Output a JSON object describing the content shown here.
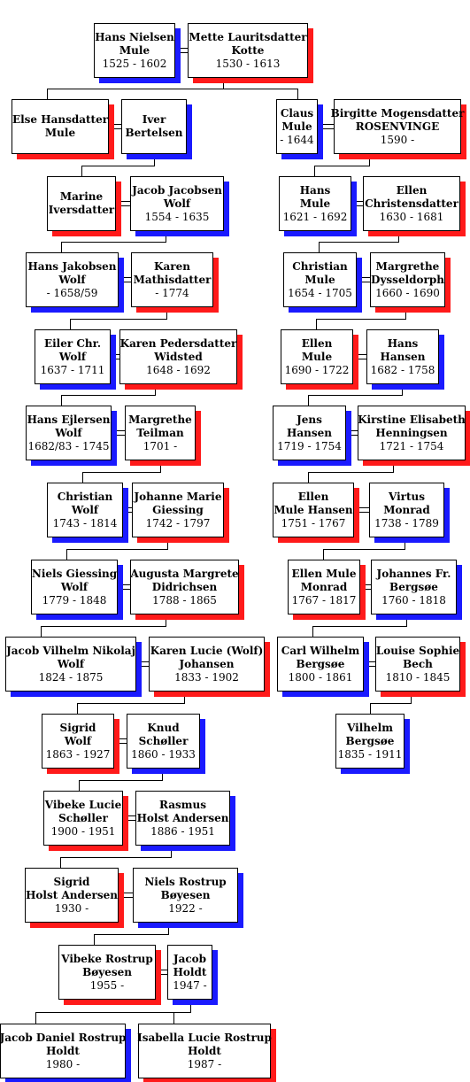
{
  "persons": [
    {
      "id": "p1",
      "line1": "Hans Nielsen",
      "line2": "Mule",
      "dates": "1525 - 1602",
      "sex": "m"
    },
    {
      "id": "p2",
      "line1": "Mette Lauritsdatter",
      "line2": "Kotte",
      "dates": "1530 - 1613",
      "sex": "f"
    },
    {
      "id": "p3",
      "line1": "Else Hansdatter",
      "line2": "Mule",
      "dates": "",
      "sex": "f"
    },
    {
      "id": "p4",
      "line1": "Iver",
      "line2": "Bertelsen",
      "dates": "",
      "sex": "m"
    },
    {
      "id": "p5",
      "line1": "Claus",
      "line2": "Mule",
      "dates": "- 1644",
      "sex": "m"
    },
    {
      "id": "p6",
      "line1": "Birgitte Mogensdatter",
      "line2": "ROSENVINGE",
      "dates": "1590 -",
      "sex": "f"
    },
    {
      "id": "p7",
      "line1": "Marine",
      "line2": "Iversdatter",
      "dates": "",
      "sex": "f"
    },
    {
      "id": "p8",
      "line1": "Jacob Jacobsen",
      "line2": "Wolf",
      "dates": "1554 - 1635",
      "sex": "m"
    },
    {
      "id": "p9",
      "line1": "Hans",
      "line2": "Mule",
      "dates": "1621 - 1692",
      "sex": "m"
    },
    {
      "id": "p10",
      "line1": "Ellen",
      "line2": "Christensdatter",
      "dates": "1630 - 1681",
      "sex": "f"
    },
    {
      "id": "p11",
      "line1": "Hans Jakobsen",
      "line2": "Wolf",
      "dates": "- 1658/59",
      "sex": "m"
    },
    {
      "id": "p12",
      "line1": "Karen",
      "line2": "Mathisdatter",
      "dates": "- 1774",
      "sex": "f"
    },
    {
      "id": "p13",
      "line1": "Christian",
      "line2": "Mule",
      "dates": "1654 - 1705",
      "sex": "m"
    },
    {
      "id": "p14",
      "line1": "Margrethe",
      "line2": "Dysseldorph",
      "dates": "1660 - 1690",
      "sex": "f"
    },
    {
      "id": "p15",
      "line1": "Eiler Chr.",
      "line2": "Wolf",
      "dates": "1637 - 1711",
      "sex": "m"
    },
    {
      "id": "p16",
      "line1": "Karen Pedersdatter",
      "line2": "Widsted",
      "dates": "1648 - 1692",
      "sex": "f"
    },
    {
      "id": "p17",
      "line1": "Ellen",
      "line2": "Mule",
      "dates": "1690 - 1722",
      "sex": "f"
    },
    {
      "id": "p18",
      "line1": "Hans",
      "line2": "Hansen",
      "dates": "1682 - 1758",
      "sex": "m"
    },
    {
      "id": "p19",
      "line1": "Hans Ejlersen",
      "line2": "Wolf",
      "dates": "1682/83 - 1745",
      "sex": "m"
    },
    {
      "id": "p20",
      "line1": "Margrethe",
      "line2": "Teilman",
      "dates": "1701 -",
      "sex": "f"
    },
    {
      "id": "p21",
      "line1": "Jens",
      "line2": "Hansen",
      "dates": "1719 - 1754",
      "sex": "m"
    },
    {
      "id": "p22",
      "line1": "Kirstine Elisabeth",
      "line2": "Henningsen",
      "dates": "1721 - 1754",
      "sex": "f"
    },
    {
      "id": "p23",
      "line1": "Christian",
      "line2": "Wolf",
      "dates": "1743 - 1814",
      "sex": "m"
    },
    {
      "id": "p24",
      "line1": "Johanne Marie",
      "line2": "Giessing",
      "dates": "1742 - 1797",
      "sex": "f"
    },
    {
      "id": "p25",
      "line1": "Ellen",
      "line2": "Mule Hansen",
      "dates": "1751 - 1767",
      "sex": "f"
    },
    {
      "id": "p26",
      "line1": "Virtus",
      "line2": "Monrad",
      "dates": "1738 - 1789",
      "sex": "m"
    },
    {
      "id": "p27",
      "line1": "Niels Giessing",
      "line2": "Wolf",
      "dates": "1779 - 1848",
      "sex": "m"
    },
    {
      "id": "p28",
      "line1": "Augusta Margrete",
      "line2": "Didrichsen",
      "dates": "1788 - 1865",
      "sex": "f"
    },
    {
      "id": "p29",
      "line1": "Ellen Mule",
      "line2": "Monrad",
      "dates": "1767 - 1817",
      "sex": "f"
    },
    {
      "id": "p30",
      "line1": "Johannes Fr.",
      "line2": "Bergsøe",
      "dates": "1760 - 1818",
      "sex": "m"
    },
    {
      "id": "p31",
      "line1": "Jacob Vilhelm Nikolaj",
      "line2": "Wolf",
      "dates": "1824 - 1875",
      "sex": "m"
    },
    {
      "id": "p32",
      "line1": "Karen Lucie (Wolf)",
      "line2": "Johansen",
      "dates": "1833 - 1902",
      "sex": "f"
    },
    {
      "id": "p33",
      "line1": "Carl Wilhelm",
      "line2": "Bergsøe",
      "dates": "1800 - 1861",
      "sex": "m"
    },
    {
      "id": "p34",
      "line1": "Louise Sophie",
      "line2": "Bech",
      "dates": "1810 - 1845",
      "sex": "f"
    },
    {
      "id": "p35",
      "line1": "Vilhelm",
      "line2": "Bergsøe",
      "dates": "1835 - 1911",
      "sex": "m"
    },
    {
      "id": "p36",
      "line1": "Sigrid",
      "line2": "Wolf",
      "dates": "1863 - 1927",
      "sex": "f"
    },
    {
      "id": "p37",
      "line1": "Knud",
      "line2": "Schøller",
      "dates": "1860 - 1933",
      "sex": "m"
    },
    {
      "id": "p38",
      "line1": "Vibeke Lucie",
      "line2": "Schøller",
      "dates": "1900 - 1951",
      "sex": "f"
    },
    {
      "id": "p39",
      "line1": "Rasmus",
      "line2": "Holst Andersen",
      "dates": "1886 - 1951",
      "sex": "m"
    },
    {
      "id": "p40",
      "line1": "Sigrid",
      "line2": "Holst Andersen",
      "dates": "1930 -",
      "sex": "f"
    },
    {
      "id": "p41",
      "line1": "Niels Rostrup",
      "line2": "Bøyesen",
      "dates": "1922 -",
      "sex": "m"
    },
    {
      "id": "p42",
      "line1": "Vibeke Rostrup",
      "line2": "Bøyesen",
      "dates": "1955 -",
      "sex": "f"
    },
    {
      "id": "p43",
      "line1": "Jacob",
      "line2": "Holdt",
      "dates": "1947 -",
      "sex": "m"
    },
    {
      "id": "p44",
      "line1": "Jacob Daniel Rostrup",
      "line2": "Holdt",
      "dates": "1980 -",
      "sex": "m"
    },
    {
      "id": "p45",
      "line1": "Isabella Lucie Rostrup",
      "line2": "Holdt",
      "dates": "1987 -",
      "sex": "f"
    }
  ],
  "colors": {
    "male_shadow": "#1a1aff",
    "female_shadow": "#ff1a1a",
    "line": "#000000"
  }
}
